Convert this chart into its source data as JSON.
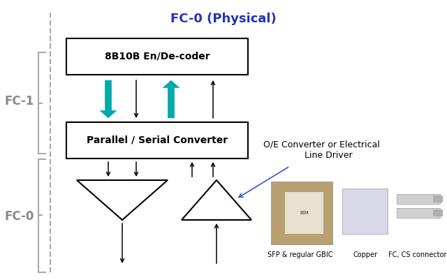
{
  "title": "FC-0 (Physical)",
  "title_color": "#2233BB",
  "title_fontsize": 13,
  "fc1_label": "FC-1",
  "fc0_label": "FC-0",
  "label_color": "#888888",
  "label_fontsize": 12,
  "box1_text": "8B10B En/De-coder",
  "box2_text": "Parallel / Serial Converter",
  "teal_color": "#00AAAA",
  "annotation_text": "O/E Converter or Electrical\n     Line Driver",
  "annotation_color": "#000000",
  "annotation_fontsize": 9,
  "caption1": "SFP & regular GBIC",
  "caption2": "Copper",
  "caption3": "FC, CS connectors",
  "caption_fontsize": 7,
  "caption_color": "#000000"
}
